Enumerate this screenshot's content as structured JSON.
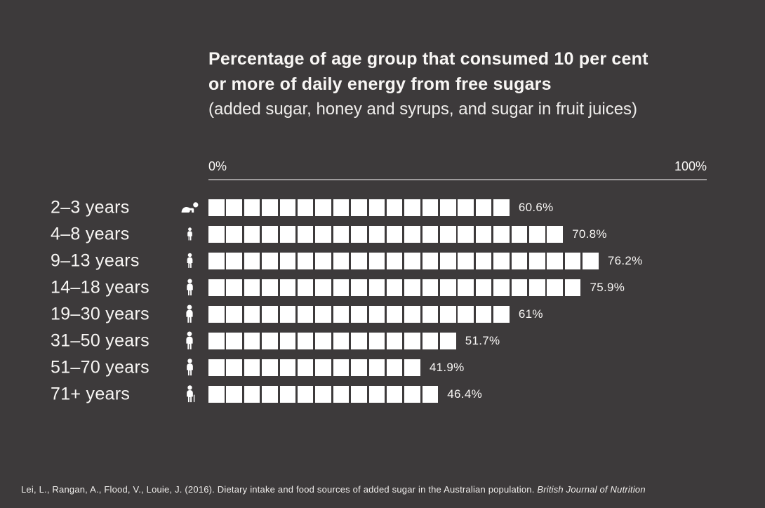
{
  "colors": {
    "background": "#3d3a3b",
    "text": "#f8f6f4",
    "text_soft": "#efedeb",
    "square": "#ffffff",
    "axis_line": "#9e9b9c"
  },
  "title": {
    "line1": "Percentage of age group that consumed 10 per cent",
    "line2": "or more of daily energy from free sugars",
    "subtitle": "(added sugar, honey and syrups, and sugar in fruit juices)"
  },
  "axis": {
    "min_label": "0%",
    "max_label": "100%"
  },
  "chart_data": {
    "type": "bar",
    "variant": "pictogram-waffle-rows",
    "title": "Percentage of age group that consumed 10 per cent or more of daily energy from free sugars (added sugar, honey and syrups, and sugar in fruit juices)",
    "xlabel": "",
    "ylabel": "",
    "xlim": [
      0,
      100
    ],
    "unit": "% of age group",
    "grid": false,
    "legend": "none",
    "categories": [
      "2–3 years",
      "4–8 years",
      "9–13 years",
      "14–18 years",
      "19–30 years",
      "31–50 years",
      "51–70 years",
      "71+ years"
    ],
    "values": [
      60.6,
      70.8,
      76.2,
      75.9,
      61,
      51.7,
      41.9,
      46.4
    ],
    "rows": [
      {
        "label": "2–3 years",
        "icon": "baby-crawling-icon",
        "value": 60.6,
        "value_label": "60.6%",
        "squares": 17
      },
      {
        "label": "4–8 years",
        "icon": "young-child-icon",
        "value": 70.8,
        "value_label": "70.8%",
        "squares": 20
      },
      {
        "label": "9–13 years",
        "icon": "child-icon",
        "value": 76.2,
        "value_label": "76.2%",
        "squares": 22
      },
      {
        "label": "14–18 years",
        "icon": "teen-icon",
        "value": 75.9,
        "value_label": "75.9%",
        "squares": 21
      },
      {
        "label": "19–30 years",
        "icon": "adult-icon",
        "value": 61,
        "value_label": "61%",
        "squares": 17
      },
      {
        "label": "31–50 years",
        "icon": "adult-icon",
        "value": 51.7,
        "value_label": "51.7%",
        "squares": 14
      },
      {
        "label": "51–70 years",
        "icon": "adult-icon",
        "value": 41.9,
        "value_label": "41.9%",
        "squares": 12
      },
      {
        "label": "71+ years",
        "icon": "elderly-person-icon",
        "value": 46.4,
        "value_label": "46.4%",
        "squares": 13
      }
    ]
  },
  "footer": {
    "citation": "Lei, L., Rangan, A., Flood, V., Louie, J. (2016). Dietary intake and food sources of added sugar in the Australian population. ",
    "citation_italic": "British Journal of Nutrition"
  }
}
